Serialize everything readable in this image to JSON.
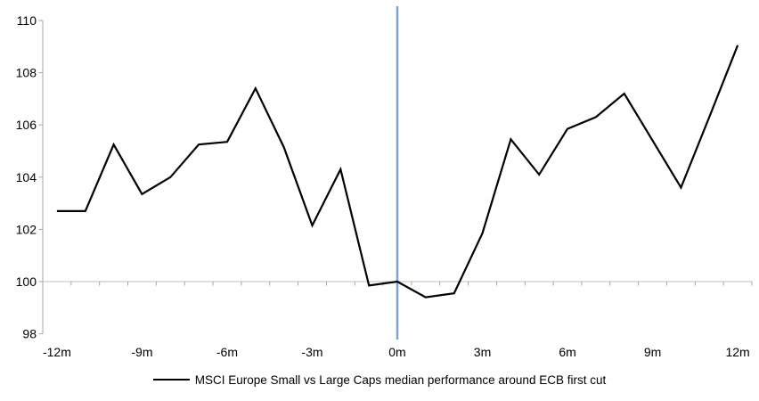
{
  "chart_data": {
    "type": "line",
    "title": "",
    "xlabel": "",
    "ylabel": "",
    "x": [
      -12,
      -11,
      -10,
      -9,
      -8,
      -7,
      -6,
      -5,
      -4,
      -3,
      -2,
      -1,
      0,
      1,
      2,
      3,
      4,
      5,
      6,
      7,
      8,
      9,
      10,
      11,
      12
    ],
    "series": [
      {
        "name": "MSCI Europe Small vs Large Caps median performance around ECB first cut",
        "color": "#000000",
        "values": [
          102.7,
          102.7,
          105.25,
          103.35,
          104.0,
          105.25,
          105.35,
          107.4,
          105.15,
          102.15,
          104.3,
          99.85,
          100.0,
          99.4,
          99.55,
          101.85,
          105.45,
          104.1,
          105.85,
          106.3,
          107.2,
          105.4,
          103.6,
          106.3,
          109.05
        ]
      }
    ],
    "x_tick_positions": [
      -12,
      -9,
      -6,
      -3,
      0,
      3,
      6,
      9,
      12
    ],
    "x_tick_labels": [
      "-12m",
      "-9m",
      "-6m",
      "-3m",
      "0m",
      "3m",
      "6m",
      "9m",
      "12m"
    ],
    "y_ticks": [
      98,
      100,
      102,
      104,
      106,
      108,
      110
    ],
    "y_tick_labels": [
      "98",
      "100",
      "102",
      "104",
      "106",
      "108",
      "110"
    ],
    "xlim": [
      -12.5,
      12.5
    ],
    "ylim": [
      98,
      110
    ],
    "reference_lines": {
      "vertical_x": 0,
      "horizontal_y": 100
    },
    "legend_position": "bottom-center",
    "grid": "none (single horizontal baseline at 100)"
  },
  "colors": {
    "series_line": "#000000",
    "event_line_blue": "#7CA5D6",
    "axis_line": "#A6A6A6",
    "baseline_100": "#BDBDBD",
    "tick_text": "#000000",
    "background": "#FFFFFF"
  }
}
